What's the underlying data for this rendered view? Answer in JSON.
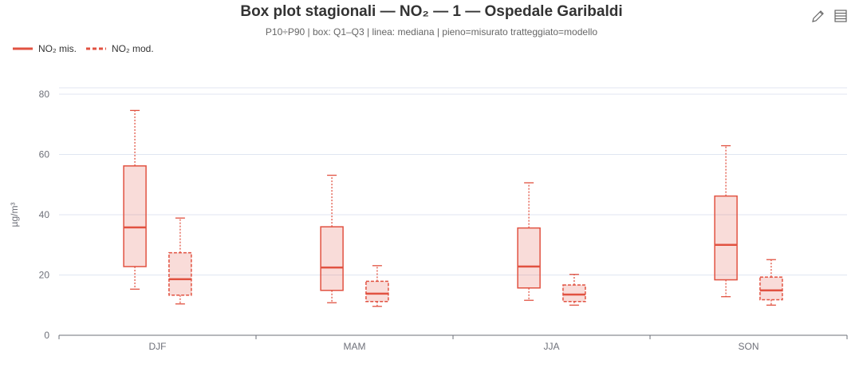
{
  "header": {
    "title": "Box plot stagionali — NO₂ — 1 — Ospedale Garibaldi",
    "subtitle": "P10÷P90  |  box: Q1–Q3  |  linea: mediana  |  pieno=misurato  tratteggiato=modello"
  },
  "legend": [
    {
      "label": "NO₂ mis.",
      "style": "solid"
    },
    {
      "label": "NO₂ mod.",
      "style": "dashed"
    }
  ],
  "toolbox": [
    {
      "icon": "pencil-icon"
    },
    {
      "icon": "data-view-icon"
    }
  ],
  "colors": {
    "series": "#e15241",
    "fill": "rgba(225,82,65,0.2)",
    "grid": "#e0e6f1",
    "axis": "#6e7079"
  },
  "chart_data": {
    "type": "boxplot",
    "categories": [
      "DJF",
      "MAM",
      "JJA",
      "SON"
    ],
    "ylabel": "µg/m³",
    "ylim": [
      0,
      80
    ],
    "yticks": [
      0,
      20,
      40,
      60,
      80
    ],
    "series": [
      {
        "name": "NO₂ mis.",
        "line": "solid",
        "boxes": [
          {
            "p10": 15.3,
            "q1": 22.8,
            "median": 35.8,
            "q3": 56.2,
            "p90": 74.6
          },
          {
            "p10": 10.8,
            "q1": 14.9,
            "median": 22.5,
            "q3": 36.0,
            "p90": 53.1
          },
          {
            "p10": 11.6,
            "q1": 15.7,
            "median": 22.8,
            "q3": 35.6,
            "p90": 50.6
          },
          {
            "p10": 12.8,
            "q1": 18.4,
            "median": 30.0,
            "q3": 46.2,
            "p90": 62.9
          }
        ]
      },
      {
        "name": "NO₂ mod.",
        "line": "dashed",
        "boxes": [
          {
            "p10": 10.4,
            "q1": 13.3,
            "median": 18.6,
            "q3": 27.4,
            "p90": 38.9
          },
          {
            "p10": 9.6,
            "q1": 11.2,
            "median": 13.8,
            "q3": 17.9,
            "p90": 23.1
          },
          {
            "p10": 10.0,
            "q1": 11.2,
            "median": 13.5,
            "q3": 16.7,
            "p90": 20.2
          },
          {
            "p10": 10.0,
            "q1": 11.8,
            "median": 14.9,
            "q3": 19.3,
            "p90": 25.1
          }
        ]
      }
    ]
  }
}
